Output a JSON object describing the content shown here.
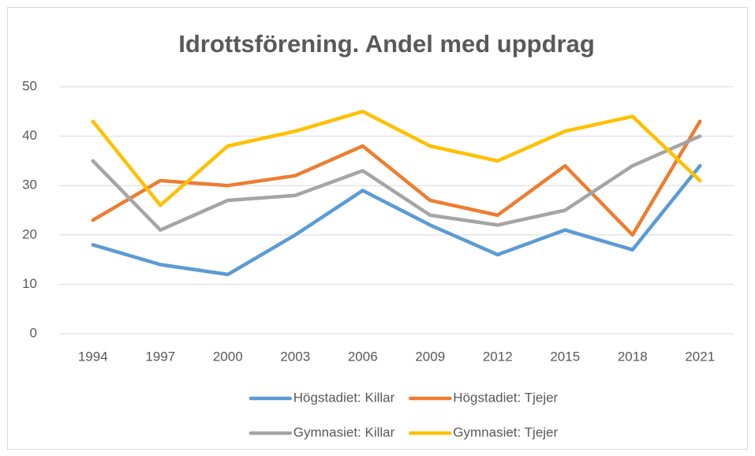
{
  "chart_data": {
    "type": "line",
    "title": "Idrottsförening. Andel med uppdrag",
    "categories": [
      "1994",
      "1997",
      "2000",
      "2003",
      "2006",
      "2009",
      "2012",
      "2015",
      "2018",
      "2021"
    ],
    "series": [
      {
        "name": "Högstadiet: Killar",
        "color": "#5b9bd5",
        "values": [
          18,
          14,
          12,
          20,
          29,
          22,
          16,
          21,
          17,
          34
        ]
      },
      {
        "name": "Högstadiet: Tjejer",
        "color": "#ed7d31",
        "values": [
          23,
          31,
          30,
          32,
          38,
          27,
          24,
          34,
          20,
          43
        ]
      },
      {
        "name": "Gymnasiet: Killar",
        "color": "#a5a5a5",
        "values": [
          35,
          21,
          27,
          28,
          33,
          24,
          22,
          25,
          34,
          40
        ]
      },
      {
        "name": "Gymnasiet: Tjejer",
        "color": "#ffc000",
        "values": [
          43,
          26,
          38,
          41,
          45,
          38,
          35,
          41,
          44,
          31
        ]
      }
    ],
    "ylim": [
      0,
      50
    ],
    "yticks": [
      0,
      10,
      20,
      30,
      40,
      50
    ],
    "grid": true,
    "legend": "bottom"
  }
}
